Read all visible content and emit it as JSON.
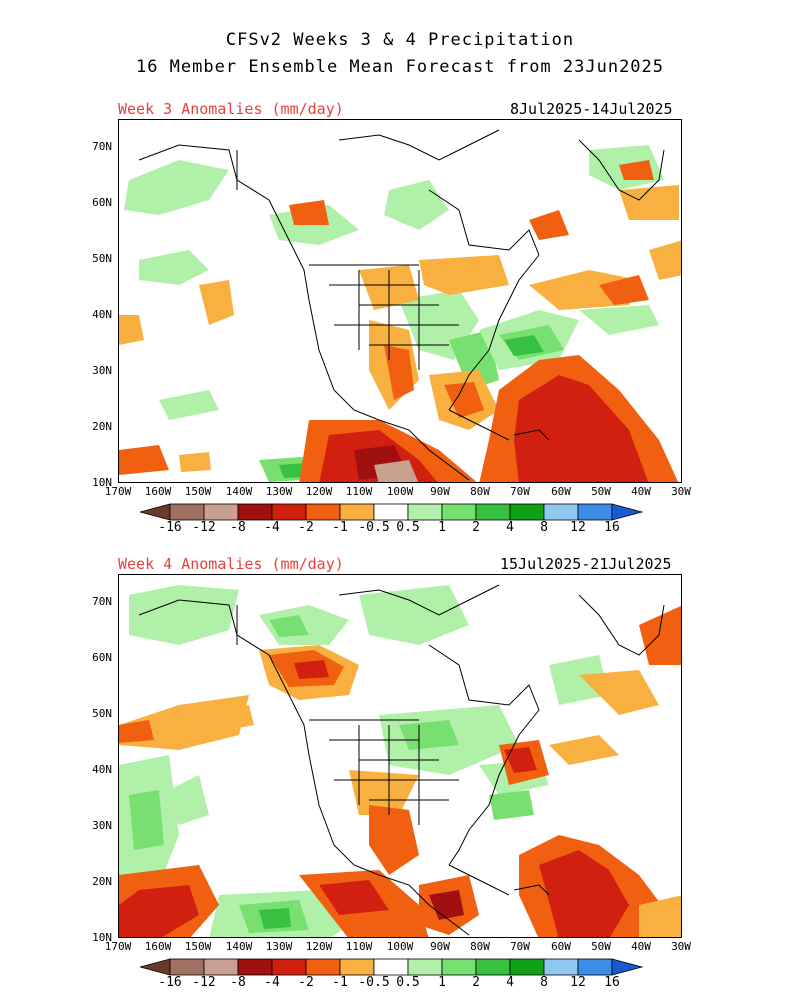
{
  "header": {
    "title_line1": "CFSv2 Weeks 3 & 4 Precipitation",
    "title_line2": "16 Member Ensemble Mean Forecast from 23Jun2025"
  },
  "panels": [
    {
      "label": "Week 3 Anomalies (mm/day)",
      "dates": "8Jul2025-14Jul2025"
    },
    {
      "label": "Week 4 Anomalies (mm/day)",
      "dates": "15Jul2025-21Jul2025"
    }
  ],
  "lat_labels": [
    "70N",
    "60N",
    "50N",
    "40N",
    "30N",
    "20N",
    "10N"
  ],
  "lon_labels": [
    "170W",
    "160W",
    "150W",
    "140W",
    "130W",
    "120W",
    "110W",
    "100W",
    "90W",
    "80W",
    "70W",
    "60W",
    "50W",
    "40W",
    "30W"
  ],
  "colorbar": {
    "labels": [
      "-16",
      "-12",
      "-8",
      "-4",
      "-2",
      "-1",
      "-0.5",
      "0.5",
      "1",
      "2",
      "4",
      "8",
      "12",
      "16"
    ],
    "colors": [
      "#6b3a2a",
      "#a07060",
      "#c8a090",
      "#a01010",
      "#d22010",
      "#f06010",
      "#f8b040",
      "#ffffff",
      "#b0f0a8",
      "#78e070",
      "#38c040",
      "#10a018",
      "#90c8f0",
      "#3c8ce8",
      "#1a5ad0"
    ]
  },
  "colors": {
    "dry_light": "#f8b040",
    "dry_mid": "#f06010",
    "dry_strong": "#d22010",
    "dry_dark": "#a01010",
    "wet_light": "#b0f0a8",
    "wet_mid": "#78e070",
    "wet_strong": "#38c040",
    "label_red": "#e8413c"
  }
}
